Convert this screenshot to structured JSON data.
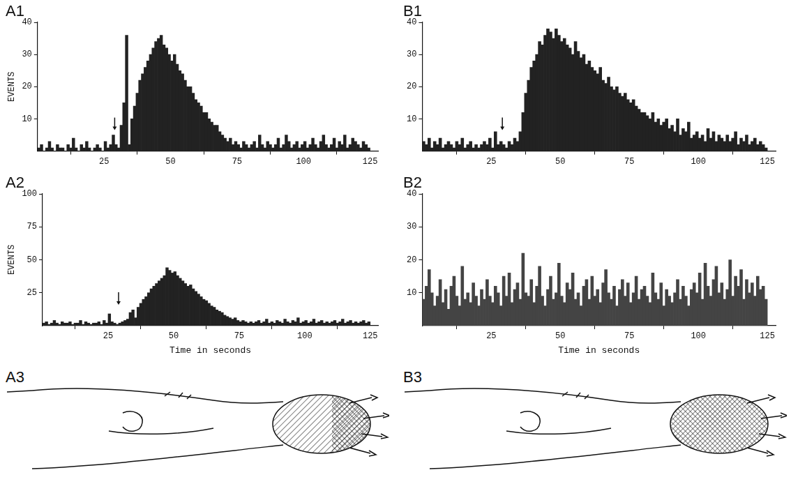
{
  "chart_data": [
    {
      "type": "histogram",
      "title": "A1",
      "y_label": "EVENTS",
      "color": "#222222",
      "grid": false,
      "stimulus": 29,
      "xlim": [
        0,
        128
      ],
      "xticks": [
        25,
        50,
        75,
        100,
        125
      ],
      "ylim": [
        0,
        40
      ],
      "yticks": [
        10,
        20,
        30,
        40
      ],
      "bins": [
        0,
        1,
        2,
        3,
        4,
        5,
        6,
        7,
        8,
        9,
        10,
        11,
        12,
        13,
        14,
        15,
        16,
        17,
        18,
        19,
        20,
        21,
        22,
        23,
        24,
        25,
        26,
        27,
        28,
        29,
        30,
        31,
        32,
        33,
        34,
        35,
        36,
        37,
        38,
        39,
        40,
        41,
        42,
        43,
        44,
        45,
        46,
        47,
        48,
        49,
        50,
        51,
        52,
        53,
        54,
        55,
        56,
        57,
        58,
        59,
        60,
        61,
        62,
        63,
        64,
        65,
        66,
        67,
        68,
        69,
        70,
        71,
        72,
        73,
        74,
        75,
        76,
        77,
        78,
        79,
        80,
        81,
        82,
        83,
        84,
        85,
        86,
        87,
        88,
        89,
        90,
        91,
        92,
        93,
        94,
        95,
        96,
        97,
        98,
        99,
        100,
        101,
        102,
        103,
        104,
        105,
        106,
        107,
        108,
        109,
        110,
        111,
        112,
        113,
        114,
        115,
        116,
        117,
        118,
        119,
        120,
        121,
        122,
        123,
        124,
        125
      ],
      "values": [
        1,
        2,
        0,
        1,
        3,
        1,
        0,
        2,
        1,
        1,
        0,
        2,
        1,
        4,
        1,
        0,
        2,
        1,
        3,
        1,
        0,
        1,
        2,
        1,
        0,
        3,
        1,
        2,
        5,
        2,
        1,
        8,
        15,
        36,
        2,
        10,
        14,
        18,
        22,
        24,
        26,
        28,
        30,
        32,
        34,
        35,
        36,
        33,
        32,
        30,
        28,
        30,
        27,
        25,
        24,
        22,
        20,
        20,
        18,
        16,
        15,
        14,
        12,
        12,
        10,
        9,
        8,
        8,
        6,
        5,
        4,
        3,
        4,
        2,
        3,
        2,
        1,
        3,
        2,
        1,
        2,
        3,
        1,
        5,
        2,
        1,
        3,
        2,
        1,
        2,
        4,
        1,
        2,
        5,
        3,
        1,
        2,
        3,
        1,
        2,
        3,
        1,
        2,
        4,
        2,
        1,
        3,
        5,
        2,
        1,
        2,
        4,
        1,
        3,
        2,
        5,
        1,
        2,
        4,
        3,
        2,
        1,
        3,
        2,
        1
      ]
    },
    {
      "type": "histogram",
      "title": "A2",
      "y_label": "EVENTS",
      "x_label": "Time in seconds",
      "color": "#222222",
      "grid": false,
      "stimulus": 29,
      "xlim": [
        0,
        128
      ],
      "xticks": [
        25,
        50,
        75,
        100,
        125
      ],
      "ylim": [
        0,
        100
      ],
      "yticks": [
        25,
        50,
        75,
        100
      ],
      "bins": [
        0,
        1,
        2,
        3,
        4,
        5,
        6,
        7,
        8,
        9,
        10,
        11,
        12,
        13,
        14,
        15,
        16,
        17,
        18,
        19,
        20,
        21,
        22,
        23,
        24,
        25,
        26,
        27,
        28,
        29,
        30,
        31,
        32,
        33,
        34,
        35,
        36,
        37,
        38,
        39,
        40,
        41,
        42,
        43,
        44,
        45,
        46,
        47,
        48,
        49,
        50,
        51,
        52,
        53,
        54,
        55,
        56,
        57,
        58,
        59,
        60,
        61,
        62,
        63,
        64,
        65,
        66,
        67,
        68,
        69,
        70,
        71,
        72,
        73,
        74,
        75,
        76,
        77,
        78,
        79,
        80,
        81,
        82,
        83,
        84,
        85,
        86,
        87,
        88,
        89,
        90,
        91,
        92,
        93,
        94,
        95,
        96,
        97,
        98,
        99,
        100,
        101,
        102,
        103,
        104,
        105,
        106,
        107,
        108,
        109,
        110,
        111,
        112,
        113,
        114,
        115,
        116,
        117,
        118,
        119,
        120,
        121,
        122,
        123,
        124,
        125
      ],
      "values": [
        2,
        3,
        1,
        2,
        4,
        2,
        1,
        3,
        2,
        2,
        3,
        1,
        2,
        2,
        4,
        1,
        3,
        2,
        1,
        2,
        2,
        3,
        1,
        4,
        2,
        9,
        3,
        2,
        1,
        2,
        3,
        4,
        5,
        10,
        12,
        6,
        14,
        17,
        20,
        22,
        25,
        28,
        30,
        32,
        34,
        36,
        38,
        44,
        42,
        40,
        41,
        38,
        36,
        34,
        32,
        30,
        31,
        28,
        26,
        24,
        22,
        20,
        19,
        17,
        15,
        14,
        12,
        11,
        10,
        8,
        7,
        6,
        5,
        6,
        4,
        3,
        4,
        3,
        2,
        3,
        2,
        3,
        4,
        2,
        3,
        5,
        2,
        3,
        2,
        4,
        3,
        2,
        5,
        3,
        2,
        4,
        3,
        6,
        2,
        3,
        4,
        2,
        3,
        5,
        2,
        3,
        4,
        2,
        3,
        2,
        3,
        4,
        2,
        3,
        5,
        2,
        3,
        4,
        2,
        3,
        2,
        3,
        4,
        2,
        3
      ]
    },
    {
      "type": "histogram",
      "title": "B1",
      "color": "#222222",
      "grid": false,
      "stimulus": 29,
      "xlim": [
        0,
        128
      ],
      "xticks": [
        25,
        50,
        75,
        100,
        125
      ],
      "ylim": [
        0,
        40
      ],
      "yticks": [
        10,
        20,
        30,
        40
      ],
      "bins": [
        0,
        1,
        2,
        3,
        4,
        5,
        6,
        7,
        8,
        9,
        10,
        11,
        12,
        13,
        14,
        15,
        16,
        17,
        18,
        19,
        20,
        21,
        22,
        23,
        24,
        25,
        26,
        27,
        28,
        29,
        30,
        31,
        32,
        33,
        34,
        35,
        36,
        37,
        38,
        39,
        40,
        41,
        42,
        43,
        44,
        45,
        46,
        47,
        48,
        49,
        50,
        51,
        52,
        53,
        54,
        55,
        56,
        57,
        58,
        59,
        60,
        61,
        62,
        63,
        64,
        65,
        66,
        67,
        68,
        69,
        70,
        71,
        72,
        73,
        74,
        75,
        76,
        77,
        78,
        79,
        80,
        81,
        82,
        83,
        84,
        85,
        86,
        87,
        88,
        89,
        90,
        91,
        92,
        93,
        94,
        95,
        96,
        97,
        98,
        99,
        100,
        101,
        102,
        103,
        104,
        105,
        106,
        107,
        108,
        109,
        110,
        111,
        112,
        113,
        114,
        115,
        116,
        117,
        118,
        119,
        120,
        121,
        122,
        123,
        124,
        125
      ],
      "values": [
        3,
        2,
        4,
        1,
        3,
        2,
        4,
        1,
        2,
        3,
        2,
        1,
        3,
        2,
        4,
        1,
        2,
        3,
        1,
        2,
        1,
        2,
        3,
        2,
        4,
        1,
        6,
        2,
        3,
        2,
        1,
        3,
        2,
        4,
        3,
        6,
        12,
        18,
        22,
        26,
        28,
        30,
        34,
        33,
        36,
        38,
        37,
        35,
        38,
        36,
        34,
        35,
        33,
        32,
        30,
        34,
        31,
        29,
        30,
        27,
        28,
        26,
        25,
        24,
        26,
        22,
        21,
        23,
        20,
        19,
        20,
        18,
        17,
        18,
        16,
        15,
        16,
        14,
        13,
        12,
        12,
        11,
        10,
        12,
        9,
        10,
        8,
        9,
        10,
        7,
        8,
        6,
        10,
        5,
        7,
        6,
        9,
        4,
        5,
        6,
        4,
        5,
        3,
        7,
        4,
        6,
        3,
        5,
        4,
        3,
        5,
        3,
        4,
        6,
        2,
        4,
        3,
        5,
        2,
        3,
        4,
        2,
        3,
        2,
        1
      ]
    },
    {
      "type": "histogram",
      "title": "B2",
      "x_label": "Time in seconds",
      "color": "#444444",
      "grid": false,
      "xlim": [
        0,
        128
      ],
      "xticks": [
        25,
        50,
        75,
        100,
        125
      ],
      "ylim": [
        0,
        40
      ],
      "yticks": [
        10,
        20,
        30,
        40
      ],
      "bins": [
        0,
        1,
        2,
        3,
        4,
        5,
        6,
        7,
        8,
        9,
        10,
        11,
        12,
        13,
        14,
        15,
        16,
        17,
        18,
        19,
        20,
        21,
        22,
        23,
        24,
        25,
        26,
        27,
        28,
        29,
        30,
        31,
        32,
        33,
        34,
        35,
        36,
        37,
        38,
        39,
        40,
        41,
        42,
        43,
        44,
        45,
        46,
        47,
        48,
        49,
        50,
        51,
        52,
        53,
        54,
        55,
        56,
        57,
        58,
        59,
        60,
        61,
        62,
        63,
        64,
        65,
        66,
        67,
        68,
        69,
        70,
        71,
        72,
        73,
        74,
        75,
        76,
        77,
        78,
        79,
        80,
        81,
        82,
        83,
        84,
        85,
        86,
        87,
        88,
        89,
        90,
        91,
        92,
        93,
        94,
        95,
        96,
        97,
        98,
        99,
        100,
        101,
        102,
        103,
        104,
        105,
        106,
        107,
        108,
        109,
        110,
        111,
        112,
        113,
        114,
        115,
        116,
        117,
        118,
        119,
        120,
        121,
        122,
        123,
        124,
        125
      ],
      "values": [
        8,
        12,
        17,
        10,
        6,
        9,
        14,
        7,
        11,
        5,
        12,
        15,
        9,
        6,
        18,
        8,
        10,
        7,
        13,
        9,
        6,
        11,
        8,
        14,
        9,
        7,
        12,
        10,
        6,
        15,
        9,
        16,
        7,
        11,
        13,
        8,
        22,
        10,
        9,
        14,
        7,
        12,
        18,
        9,
        6,
        11,
        15,
        8,
        10,
        19,
        9,
        7,
        13,
        11,
        16,
        8,
        10,
        6,
        12,
        14,
        8,
        15,
        9,
        11,
        7,
        13,
        17,
        10,
        8,
        12,
        6,
        11,
        14,
        9,
        13,
        7,
        10,
        15,
        8,
        11,
        12,
        9,
        7,
        16,
        10,
        8,
        13,
        6,
        11,
        9,
        7,
        10,
        14,
        8,
        12,
        9,
        6,
        11,
        13,
        10,
        16,
        8,
        19,
        12,
        9,
        14,
        18,
        10,
        13,
        8,
        11,
        20,
        9,
        15,
        12,
        17,
        8,
        14,
        10,
        13,
        9,
        15,
        11,
        12,
        8
      ]
    }
  ],
  "figures": [
    {
      "label": "A3"
    },
    {
      "label": "B3"
    }
  ]
}
